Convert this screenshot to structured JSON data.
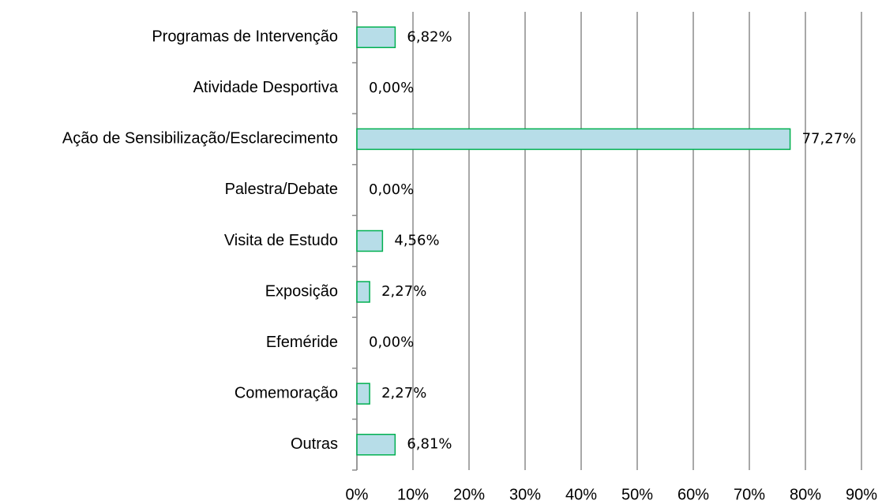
{
  "chart_data": {
    "type": "bar",
    "orientation": "horizontal",
    "categories": [
      "Programas de Intervenção",
      "Atividade Desportiva",
      "Ação de Sensibilização/Esclarecimento",
      "Palestra/Debate",
      "Visita de Estudo",
      "Exposição",
      "Efeméride",
      "Comemoração",
      "Outras"
    ],
    "values": [
      6.82,
      0.0,
      77.27,
      0.0,
      4.56,
      2.27,
      0.0,
      2.27,
      6.81
    ],
    "value_labels": [
      "6,82%",
      "0,00%",
      "77,27%",
      "0,00%",
      "4,56%",
      "2,27%",
      "0,00%",
      "2,27%",
      "6,81%"
    ],
    "color": "#b7dde8",
    "edge_color": "#00b050",
    "xlim": [
      0,
      90
    ],
    "xticks": [
      {
        "value": 0,
        "label": "0%"
      },
      {
        "value": 10,
        "label": "10%"
      },
      {
        "value": 20,
        "label": "20%"
      },
      {
        "value": 30,
        "label": "30%"
      },
      {
        "value": 40,
        "label": "40%"
      },
      {
        "value": 50,
        "label": "50%"
      },
      {
        "value": 60,
        "label": "60%"
      },
      {
        "value": 70,
        "label": "70%"
      },
      {
        "value": 80,
        "label": "80%"
      },
      {
        "value": 90,
        "label": "90%"
      }
    ],
    "grid": true
  }
}
